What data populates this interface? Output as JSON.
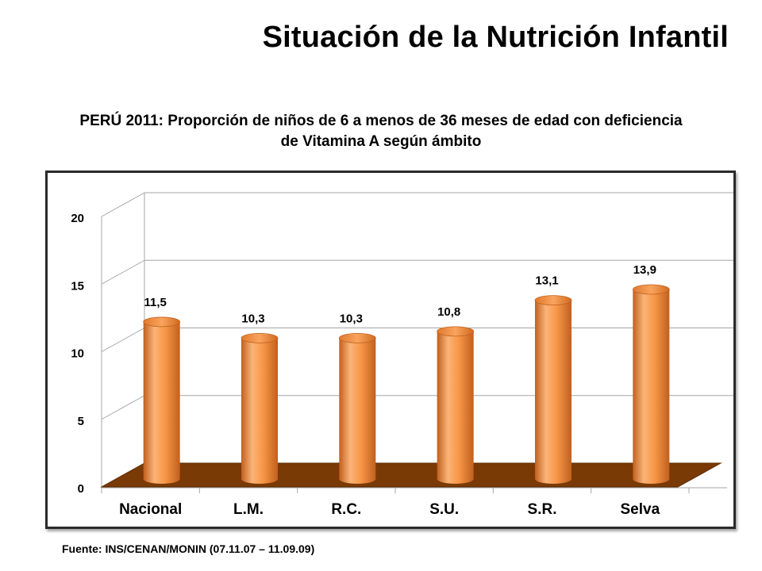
{
  "slide": {
    "title": "Situación de la Nutrición Infantil",
    "source": "Fuente: INS/CENAN/MONIN (07.11.07 – 11.09.09)"
  },
  "chart_data": {
    "type": "bar",
    "title_line1": "PERÚ 2011: Proporción de niños de 6 a menos de 36 meses de edad con deficiencia",
    "title_line2": "de Vitamina A  según ámbito",
    "categories": [
      "Nacional",
      "L.M.",
      "R.C.",
      "S.U.",
      "S.R.",
      "Selva"
    ],
    "values": [
      11.5,
      10.3,
      10.3,
      10.8,
      13.1,
      13.9
    ],
    "value_labels": [
      "11,5",
      "10,3",
      "10,3",
      "10,8",
      "13,1",
      "13,9"
    ],
    "y_ticks": [
      0,
      5,
      10,
      15,
      20
    ],
    "ylim": [
      0,
      20
    ],
    "grid": true,
    "colors": {
      "bar": "#F79646",
      "bar_light": "#FBB478",
      "bar_dark": "#C0601E",
      "floor": "#7A3A05"
    }
  }
}
